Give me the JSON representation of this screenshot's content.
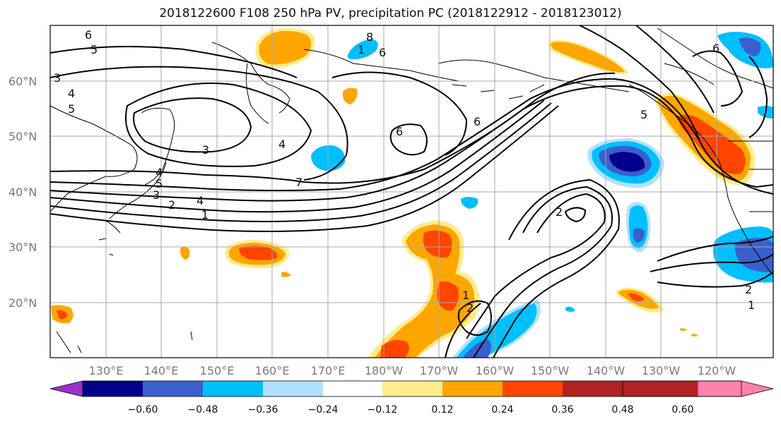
{
  "title": "2018122600 F108 250 hPa PV, precipitation PC (2018122912 - 2018123012)",
  "lat_labels": [
    "60°N",
    "50°N",
    "40°N",
    "30°N",
    "20°N"
  ],
  "lon_labels": [
    "130°E",
    "140°E",
    "150°E",
    "160°E",
    "170°E",
    "180°W",
    "170°W",
    "160°W",
    "150°W",
    "140°W",
    "130°W",
    "120°W"
  ],
  "colorbar": {
    "colors": [
      "#9932cc",
      "#00008b",
      "#3a5fcd",
      "#00bfff",
      "#b0e2ff",
      "#ffffff",
      "#ffec8b",
      "#ffa500",
      "#ff4500",
      "#b22222",
      "#ff82ab"
    ],
    "tick_labels": [
      "−0.60",
      "−0.48",
      "−0.36",
      "−0.24",
      "−0.12",
      "0.12",
      "0.24",
      "0.36",
      "0.48",
      "0.60"
    ]
  },
  "contour_labels": [
    {
      "text": "6"
    },
    {
      "text": "5"
    },
    {
      "text": "4"
    },
    {
      "text": "5"
    },
    {
      "text": "3"
    },
    {
      "text": "3"
    },
    {
      "text": "4"
    },
    {
      "text": "7"
    },
    {
      "text": "5"
    },
    {
      "text": "4"
    },
    {
      "text": "3"
    },
    {
      "text": "2"
    },
    {
      "text": "1"
    },
    {
      "text": "4"
    },
    {
      "text": "1"
    },
    {
      "text": "8"
    },
    {
      "text": "6"
    },
    {
      "text": "6"
    },
    {
      "text": "6"
    },
    {
      "text": "5"
    },
    {
      "text": "2"
    },
    {
      "text": "1"
    },
    {
      "text": "2"
    },
    {
      "text": "6"
    },
    {
      "text": "2"
    },
    {
      "text": "1"
    }
  ]
}
